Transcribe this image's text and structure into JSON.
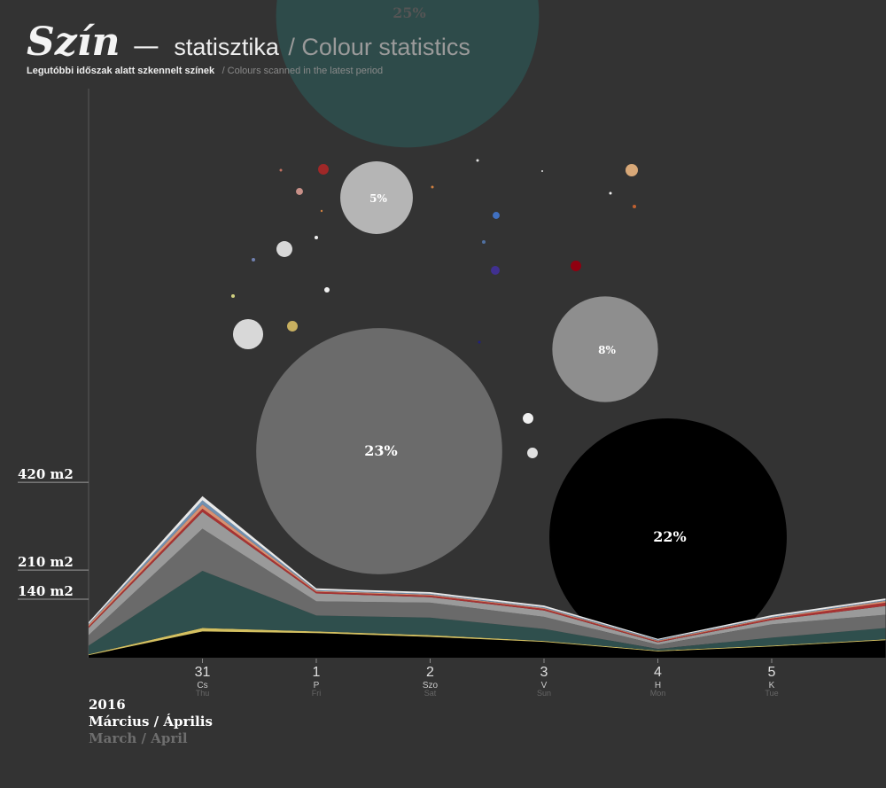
{
  "header": {
    "title_main": "Szín",
    "title_dash": "—",
    "title_hu": "statisztika",
    "title_en": "/ Colour statistics",
    "subtitle_hu": "Legutóbbi időszak alatt szkennelt színek",
    "subtitle_en": "/ Colours scanned in the latest period"
  },
  "footer": {
    "year": "2016",
    "months_hu": "Március / Április",
    "months_en": "March / April"
  },
  "bubbles": {
    "values": [
      25,
      5,
      8,
      23,
      22,
      1.67,
      0.75,
      0.45,
      0.45,
      0.27,
      0.27,
      0.36,
      0.45,
      0.55,
      0.45,
      0.45,
      0.19,
      0.115,
      0.115,
      0.115,
      0.115,
      0.115,
      0.08,
      0.08,
      0.08,
      0.08,
      0.06,
      0.08,
      0.05
    ],
    "value_labels": [
      "25%",
      "5%",
      "8%",
      "23%",
      "22%",
      null,
      null,
      null,
      null,
      null,
      null,
      null,
      null,
      null,
      null,
      null,
      null,
      null,
      null,
      null,
      null,
      null,
      null,
      null,
      null,
      null,
      null,
      null,
      null
    ],
    "colors": [
      "#2e4b4a",
      "#b5b5b5",
      "#8e8e8e",
      "#6b6b6b",
      "#000000",
      "#d8d8d8",
      "#d8d8d8",
      "#c8b060",
      "#a02828",
      "#c89088",
      "#4070c0",
      "#403090",
      "#900010",
      "#d8a878",
      "#f0f0f0",
      "#e0e0e0",
      "#f0f0f0",
      "#f0f0f0",
      "#7080b0",
      "#d0d080",
      "#5070a0",
      "#c06030",
      "#f0f0f0",
      "#e0e0e0",
      "#d08040",
      "#c07060",
      "#d08040",
      "#202080",
      "#e0e0e0"
    ]
  },
  "chart_data": {
    "type": "stacked-area",
    "categories": [
      null,
      "31",
      "1",
      "2",
      "3",
      "4",
      "5",
      null
    ],
    "day_hu": [
      null,
      "Cs",
      "P",
      "Szo",
      "V",
      "H",
      "K",
      null
    ],
    "day_en": [
      null,
      "Thu",
      "Fri",
      "Sat",
      "Sun",
      "Mon",
      "Tue",
      null
    ],
    "ylim": [
      0,
      1363
    ],
    "yticks": [
      {
        "value": 420,
        "label": "420 m2"
      },
      {
        "value": 210,
        "label": "210 m2"
      },
      {
        "value": 140,
        "label": "140 m2"
      }
    ],
    "series": [
      {
        "color": "#000000",
        "values": [
          6,
          63,
          59,
          50,
          38,
          15,
          27,
          42
        ]
      },
      {
        "color": "#d4c060",
        "values": [
          2,
          8,
          4,
          4,
          2,
          2,
          2,
          2
        ]
      },
      {
        "color": "#2f4f4d",
        "values": [
          21,
          137,
          38,
          42,
          29,
          4,
          19,
          27
        ]
      },
      {
        "color": "#6a6a6a",
        "values": [
          25,
          101,
          34,
          36,
          29,
          10,
          32,
          32
        ]
      },
      {
        "color": "#9a9a9a",
        "values": [
          17,
          40,
          19,
          13,
          15,
          6,
          10,
          21
        ]
      },
      {
        "color": "#a83232",
        "values": [
          4,
          8,
          4,
          4,
          4,
          2,
          4,
          8
        ]
      },
      {
        "color": "#d89070",
        "values": [
          4,
          10,
          2,
          2,
          2,
          2,
          2,
          4
        ]
      },
      {
        "color": "#7090b0",
        "values": [
          2,
          10,
          2,
          2,
          2,
          2,
          2,
          2
        ]
      },
      {
        "color": "#e8e8e8",
        "values": [
          4,
          10,
          4,
          4,
          4,
          2,
          4,
          4
        ]
      }
    ]
  }
}
